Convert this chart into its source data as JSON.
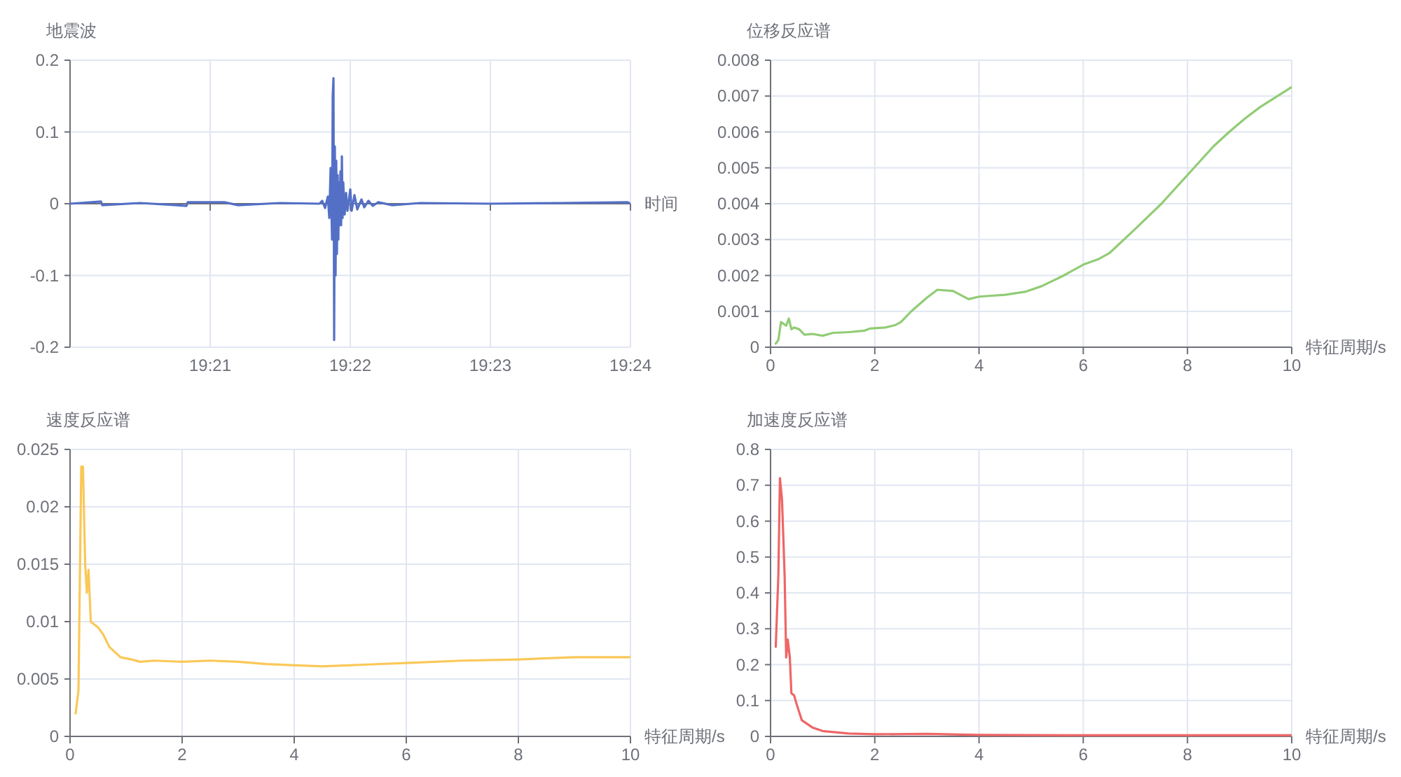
{
  "chart_data": [
    {
      "type": "line",
      "ylabel": "地震波",
      "xlabel": "时间",
      "grid": true,
      "marker": "none",
      "line_style": "solid",
      "x": [
        19.33333,
        19.337,
        19.33717,
        19.34167,
        19.34717,
        19.34733,
        19.35167,
        19.35333,
        19.35833,
        19.363,
        19.36333,
        19.36367,
        19.364,
        19.36417,
        19.36433,
        19.3645,
        19.36458,
        19.36467,
        19.36475,
        19.36483,
        19.36492,
        19.365,
        19.36508,
        19.36517,
        19.36525,
        19.36533,
        19.36542,
        19.3655,
        19.36558,
        19.36567,
        19.36575,
        19.36583,
        19.366,
        19.36617,
        19.36633,
        19.36667,
        19.36683,
        19.36717,
        19.3675,
        19.368,
        19.36833,
        19.36883,
        19.36933,
        19.37,
        19.37167,
        19.375,
        19.38333,
        19.39167,
        19.39967,
        19.4
      ],
      "series": [
        {
          "color": "#5470c6",
          "values": [
            0,
            0.003,
            -0.002,
            0.001,
            -0.003,
            0.002,
            0.002,
            -0.002,
            0.001,
            0,
            0.004,
            -0.006,
            0.01,
            -0.02,
            0.05,
            -0.05,
            0.15,
            0.175,
            -0.19,
            0.08,
            -0.1,
            0.06,
            -0.07,
            0.04,
            -0.05,
            0.03,
            -0.03,
            0.045,
            -0.03,
            0.066,
            -0.02,
            0.03,
            -0.015,
            0.015,
            -0.01,
            0.02,
            -0.01,
            0.012,
            -0.008,
            0.006,
            -0.005,
            0.004,
            -0.003,
            0.002,
            -0.002,
            0.001,
            0,
            0.001,
            0.002,
            0
          ]
        }
      ],
      "xlim": [
        19.33333,
        19.4
      ],
      "xticks": [
        {
          "value": 19.35,
          "label": "19:21"
        },
        {
          "value": 19.36667,
          "label": "19:22"
        },
        {
          "value": 19.38333,
          "label": "19:23"
        },
        {
          "value": 19.4,
          "label": "19:24"
        }
      ],
      "ylim": [
        -0.2,
        0.2
      ],
      "yticks": [
        -0.2,
        -0.1,
        0,
        0.1,
        0.2
      ]
    },
    {
      "type": "line",
      "ylabel": "位移反应谱",
      "xlabel": "特征周期/s",
      "grid": true,
      "marker": "none",
      "line_style": "solid",
      "x": [
        0.1,
        0.15,
        0.2,
        0.25,
        0.3,
        0.35,
        0.4,
        0.45,
        0.55,
        0.65,
        0.8,
        1.0,
        1.2,
        1.5,
        1.8,
        1.9,
        2.2,
        2.4,
        2.5,
        2.7,
        3.0,
        3.2,
        3.5,
        3.8,
        4.0,
        4.5,
        4.9,
        5.2,
        5.6,
        6.0,
        6.3,
        6.5,
        7.0,
        7.5,
        8.0,
        8.5,
        8.8,
        9.1,
        9.4,
        10
      ],
      "series": [
        {
          "color": "#91cc75",
          "values": [
            0.0001,
            0.0002,
            0.0007,
            0.00065,
            0.0006,
            0.0008,
            0.0005,
            0.00055,
            0.0005,
            0.00035,
            0.00037,
            0.00032,
            0.0004,
            0.00042,
            0.00046,
            0.00052,
            0.00055,
            0.00062,
            0.0007,
            0.001,
            0.00138,
            0.0016,
            0.00157,
            0.00134,
            0.00141,
            0.00146,
            0.00155,
            0.0017,
            0.00198,
            0.0023,
            0.00246,
            0.00262,
            0.0033,
            0.004,
            0.0048,
            0.0056,
            0.006,
            0.00637,
            0.0067,
            0.00725
          ]
        }
      ],
      "xlim": [
        0,
        10
      ],
      "xticks": [
        0,
        2,
        4,
        6,
        8,
        10
      ],
      "ylim": [
        0,
        0.008
      ],
      "yticks": [
        0,
        0.001,
        0.002,
        0.003,
        0.004,
        0.005,
        0.006,
        0.007,
        0.008
      ]
    },
    {
      "type": "line",
      "ylabel": "速度反应谱",
      "xlabel": "特征周期/s",
      "grid": true,
      "marker": "none",
      "line_style": "solid",
      "x": [
        0.1,
        0.15,
        0.2,
        0.23,
        0.27,
        0.3,
        0.33,
        0.37,
        0.42,
        0.5,
        0.6,
        0.7,
        0.9,
        1.1,
        1.25,
        1.5,
        2.0,
        2.5,
        3.0,
        3.5,
        4.0,
        4.5,
        5.0,
        6.0,
        7.0,
        8.0,
        9.0,
        10
      ],
      "series": [
        {
          "color": "#fac858",
          "values": [
            0.002,
            0.004,
            0.0235,
            0.0235,
            0.015,
            0.0125,
            0.0145,
            0.01,
            0.0098,
            0.0095,
            0.0088,
            0.0078,
            0.0069,
            0.0067,
            0.0065,
            0.0066,
            0.0065,
            0.0066,
            0.0065,
            0.0063,
            0.0062,
            0.0061,
            0.0062,
            0.0064,
            0.0066,
            0.0067,
            0.0069,
            0.0069
          ]
        }
      ],
      "xlim": [
        0,
        10
      ],
      "xticks": [
        0,
        2,
        4,
        6,
        8,
        10
      ],
      "ylim": [
        0,
        0.025
      ],
      "yticks": [
        0,
        0.005,
        0.01,
        0.015,
        0.02,
        0.025
      ]
    },
    {
      "type": "line",
      "ylabel": "加速度反应谱",
      "xlabel": "特征周期/s",
      "grid": true,
      "marker": "none",
      "line_style": "solid",
      "x": [
        0.1,
        0.15,
        0.18,
        0.22,
        0.27,
        0.3,
        0.33,
        0.37,
        0.4,
        0.45,
        0.5,
        0.6,
        0.8,
        1.0,
        1.5,
        2.0,
        3.0,
        4.0,
        6,
        8,
        10
      ],
      "series": [
        {
          "color": "#ee6666",
          "values": [
            0.25,
            0.45,
            0.72,
            0.66,
            0.45,
            0.22,
            0.27,
            0.22,
            0.12,
            0.115,
            0.09,
            0.045,
            0.025,
            0.015,
            0.008,
            0.006,
            0.007,
            0.004,
            0.003,
            0.003,
            0.003
          ]
        }
      ],
      "xlim": [
        0,
        10
      ],
      "xticks": [
        0,
        2,
        4,
        6,
        8,
        10
      ],
      "ylim": [
        0,
        0.8
      ],
      "yticks": [
        0,
        0.1,
        0.2,
        0.3,
        0.4,
        0.5,
        0.6,
        0.7,
        0.8
      ]
    }
  ]
}
